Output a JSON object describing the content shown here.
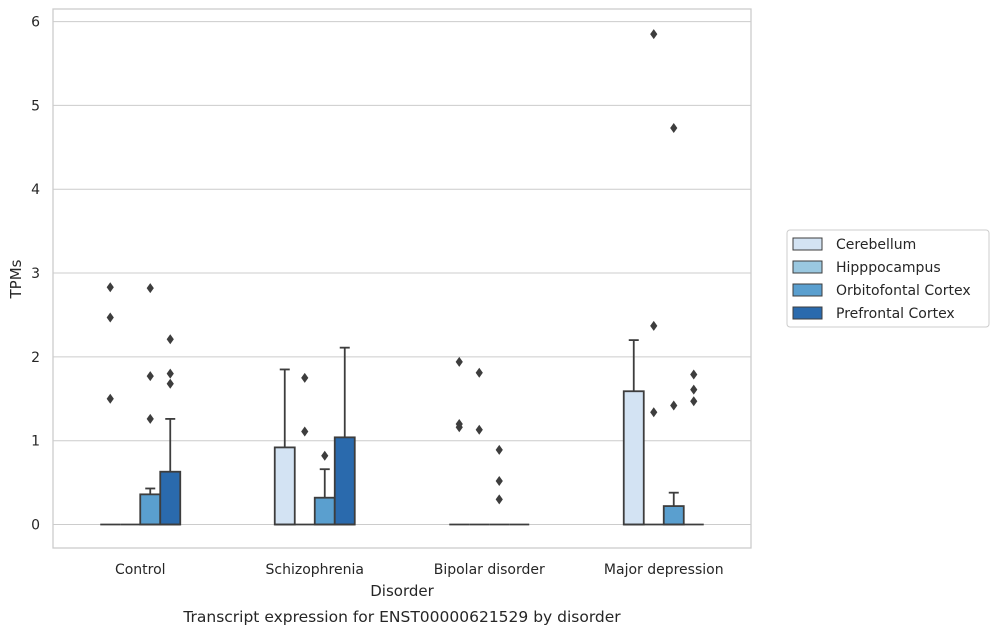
{
  "chart_data": {
    "type": "box",
    "title": "",
    "caption": "Transcript expression for ENST00000621529 by disorder",
    "xlabel": "Disorder",
    "ylabel": "TPMs",
    "ylim": [
      -0.28,
      6.15
    ],
    "yticks": [
      "0",
      "1",
      "2",
      "3",
      "4",
      "5",
      "6"
    ],
    "grid": true,
    "legend_position": "right",
    "categories": [
      "Control",
      "Schizophrenia",
      "Bipolar disorder",
      "Major depression"
    ],
    "series": [
      {
        "name": "Cerebellum",
        "color": "#d3e3f3",
        "boxes": [
          {
            "q1": 0,
            "median": 0,
            "q3": 0,
            "whisker_low": 0,
            "whisker_high": 0,
            "outliers": [
              2.83,
              2.47,
              1.5
            ]
          },
          {
            "q1": 0,
            "median": 0,
            "q3": 0.92,
            "whisker_low": 0,
            "whisker_high": 1.85,
            "outliers": []
          },
          {
            "q1": 0,
            "median": 0,
            "q3": 0,
            "whisker_low": 0,
            "whisker_high": 0,
            "outliers": [
              1.94,
              1.2,
              1.16
            ]
          },
          {
            "q1": 0,
            "median": 0,
            "q3": 1.59,
            "whisker_low": 0,
            "whisker_high": 2.2,
            "outliers": []
          }
        ]
      },
      {
        "name": "Hipppocampus",
        "color": "#9ac8e0",
        "boxes": [
          {
            "q1": 0,
            "median": 0,
            "q3": 0,
            "whisker_low": 0,
            "whisker_high": 0,
            "outliers": []
          },
          {
            "q1": 0,
            "median": 0,
            "q3": 0,
            "whisker_low": 0,
            "whisker_high": 0,
            "outliers": [
              1.75,
              1.11
            ]
          },
          {
            "q1": 0,
            "median": 0,
            "q3": 0,
            "whisker_low": 0,
            "whisker_high": 0,
            "outliers": [
              1.81,
              1.13
            ]
          },
          {
            "q1": 0,
            "median": 0,
            "q3": 0,
            "whisker_low": 0,
            "whisker_high": 0,
            "outliers": [
              5.85,
              2.37,
              1.34
            ]
          }
        ]
      },
      {
        "name": "Orbitofontal Cortex",
        "color": "#5a9fcf",
        "boxes": [
          {
            "q1": 0,
            "median": 0,
            "q3": 0.36,
            "whisker_low": 0,
            "whisker_high": 0.43,
            "outliers": [
              2.82,
              1.77,
              1.26
            ]
          },
          {
            "q1": 0,
            "median": 0,
            "q3": 0.32,
            "whisker_low": 0,
            "whisker_high": 0.66,
            "outliers": [
              0.82
            ]
          },
          {
            "q1": 0,
            "median": 0,
            "q3": 0,
            "whisker_low": 0,
            "whisker_high": 0,
            "outliers": [
              0.89,
              0.52,
              0.3
            ]
          },
          {
            "q1": 0,
            "median": 0,
            "q3": 0.22,
            "whisker_low": 0,
            "whisker_high": 0.38,
            "outliers": [
              4.73,
              1.42
            ]
          }
        ]
      },
      {
        "name": "Prefrontal Cortex",
        "color": "#2a6aad",
        "boxes": [
          {
            "q1": 0,
            "median": 0,
            "q3": 0.63,
            "whisker_low": 0,
            "whisker_high": 1.26,
            "outliers": [
              2.21,
              1.8,
              1.68
            ]
          },
          {
            "q1": 0,
            "median": 0,
            "q3": 1.04,
            "whisker_low": 0,
            "whisker_high": 2.11,
            "outliers": []
          },
          {
            "q1": 0,
            "median": 0,
            "q3": 0,
            "whisker_low": 0,
            "whisker_high": 0,
            "outliers": []
          },
          {
            "q1": 0,
            "median": 0,
            "q3": 0,
            "whisker_low": 0,
            "whisker_high": 0,
            "outliers": [
              1.79,
              1.61,
              1.47
            ]
          }
        ]
      }
    ]
  }
}
